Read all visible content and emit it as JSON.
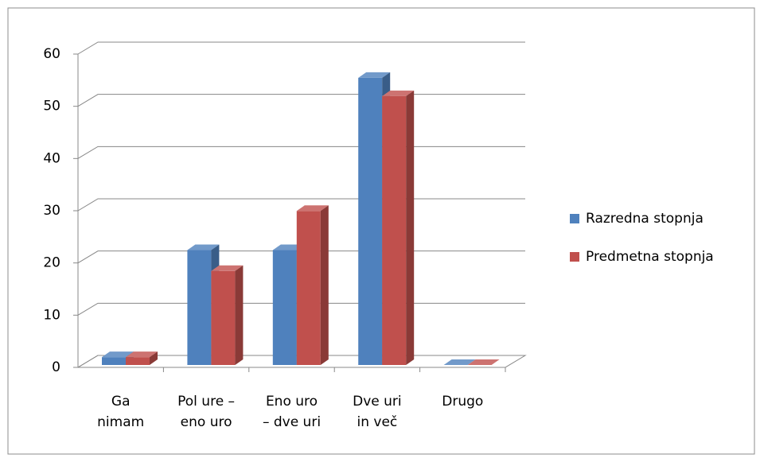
{
  "chart_data": {
    "type": "bar3d",
    "categories": [
      "Ga\nnimam",
      "Pol ure –\neno uro",
      "Eno uro\n– dve uri",
      "Dve uri\nin več",
      "Drugo"
    ],
    "series": [
      {
        "name": "Razredna stopnja",
        "color": "#4f81bd",
        "values": [
          1.5,
          22,
          22,
          55,
          0
        ]
      },
      {
        "name": "Predmetna stopnja",
        "color": "#c0504d",
        "values": [
          1.5,
          18,
          29.5,
          51.5,
          0
        ]
      }
    ],
    "ylim": [
      0,
      60
    ],
    "yticks": [
      0,
      10,
      20,
      30,
      40,
      50,
      60
    ],
    "grid": true,
    "legend": "right"
  }
}
